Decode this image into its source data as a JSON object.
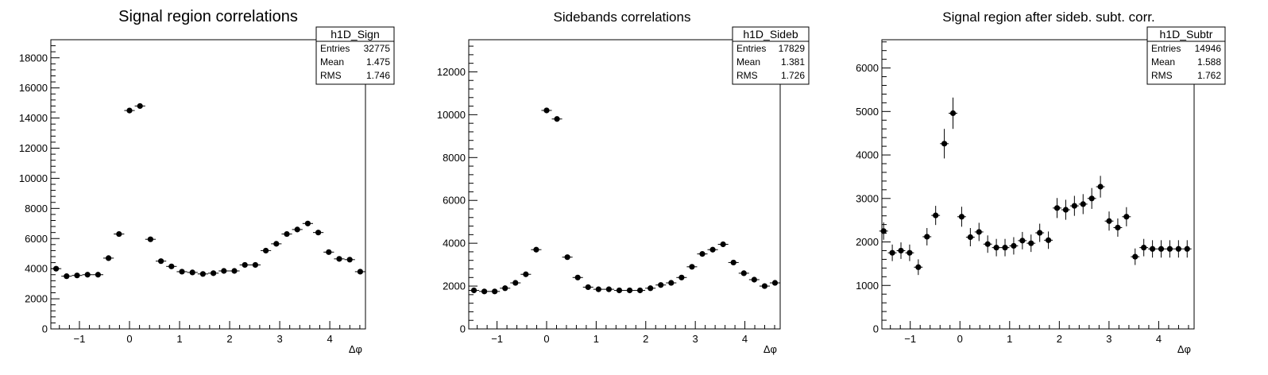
{
  "chart_data": [
    {
      "type": "scatter",
      "title": "Signal region correlations",
      "xlabel": "Δφ",
      "ylabel": "",
      "xlim": [
        -1.5708,
        4.7124
      ],
      "ylim": [
        0,
        19200
      ],
      "xticks": [
        -1,
        0,
        1,
        2,
        3,
        4
      ],
      "xtick_labels": [
        "−1",
        "0",
        "1",
        "2",
        "3",
        "4"
      ],
      "yticks": [
        0,
        2000,
        4000,
        6000,
        8000,
        10000,
        12000,
        14000,
        16000,
        18000
      ],
      "ytick_labels": [
        "0",
        "2000",
        "4000",
        "6000",
        "8000",
        "10000",
        "12000",
        "14000",
        "16000",
        "18000"
      ],
      "stats": {
        "name": "h1D_Sign",
        "rows": [
          {
            "label": "Entries",
            "value": "32775"
          },
          {
            "label": "Mean",
            "value": "1.475"
          },
          {
            "label": "RMS",
            "value": "1.746"
          }
        ]
      },
      "x": [
        -1.4661,
        -1.2566,
        -1.0472,
        -0.8378,
        -0.6283,
        -0.4189,
        -0.2094,
        0.0,
        0.2094,
        0.4189,
        0.6283,
        0.8378,
        1.0472,
        1.2566,
        1.4661,
        1.6755,
        1.885,
        2.0944,
        2.3038,
        2.5133,
        2.7227,
        2.9322,
        3.1416,
        3.351,
        3.5605,
        3.7699,
        3.9794,
        4.1888,
        4.3982,
        4.6077
      ],
      "y": [
        4000,
        3500,
        3550,
        3600,
        3600,
        4700,
        6300,
        14500,
        14800,
        5950,
        4500,
        4150,
        3800,
        3750,
        3650,
        3700,
        3850,
        3850,
        4250,
        4250,
        5200,
        5650,
        6300,
        6600,
        7000,
        6400,
        5100,
        4650,
        4600,
        3800
      ],
      "yerr": [
        63,
        59,
        60,
        60,
        60,
        69,
        79,
        120,
        122,
        77,
        67,
        64,
        62,
        61,
        60,
        61,
        62,
        62,
        65,
        65,
        72,
        75,
        79,
        81,
        84,
        80,
        71,
        68,
        68,
        62
      ]
    },
    {
      "type": "scatter",
      "title": "Sidebands correlations",
      "xlabel": "Δφ",
      "ylabel": "",
      "xlim": [
        -1.5708,
        4.7124
      ],
      "ylim": [
        0,
        13500
      ],
      "xticks": [
        -1,
        0,
        1,
        2,
        3,
        4
      ],
      "xtick_labels": [
        "−1",
        "0",
        "1",
        "2",
        "3",
        "4"
      ],
      "yticks": [
        0,
        2000,
        4000,
        6000,
        8000,
        10000,
        12000
      ],
      "ytick_labels": [
        "0",
        "2000",
        "4000",
        "6000",
        "8000",
        "10000",
        "12000"
      ],
      "stats": {
        "name": "h1D_Sideb",
        "rows": [
          {
            "label": "Entries",
            "value": "17829"
          },
          {
            "label": "Mean",
            "value": "1.381"
          },
          {
            "label": "RMS",
            "value": "1.726"
          }
        ]
      },
      "x": [
        -1.4661,
        -1.2566,
        -1.0472,
        -0.8378,
        -0.6283,
        -0.4189,
        -0.2094,
        0.0,
        0.2094,
        0.4189,
        0.6283,
        0.8378,
        1.0472,
        1.2566,
        1.4661,
        1.6755,
        1.885,
        2.0944,
        2.3038,
        2.5133,
        2.7227,
        2.9322,
        3.1416,
        3.351,
        3.5605,
        3.7699,
        3.9794,
        4.1888,
        4.3982,
        4.6077
      ],
      "y": [
        1800,
        1750,
        1750,
        1900,
        2150,
        2550,
        3700,
        10200,
        9800,
        3350,
        2400,
        1950,
        1850,
        1850,
        1800,
        1800,
        1800,
        1900,
        2050,
        2150,
        2400,
        2900,
        3500,
        3700,
        3950,
        3100,
        2600,
        2300,
        2000,
        2150
      ],
      "yerr": [
        42,
        42,
        42,
        44,
        46,
        50,
        61,
        101,
        99,
        58,
        49,
        44,
        43,
        43,
        42,
        42,
        42,
        44,
        45,
        46,
        49,
        54,
        59,
        61,
        63,
        56,
        51,
        48,
        45,
        46
      ]
    },
    {
      "type": "scatter",
      "title": "Signal region after sideb. subt. corr.",
      "xlabel": "Δφ",
      "ylabel": "",
      "xlim": [
        -1.5708,
        4.7124
      ],
      "ylim": [
        0,
        6650
      ],
      "xticks": [
        -1,
        0,
        1,
        2,
        3,
        4
      ],
      "xtick_labels": [
        "−1",
        "0",
        "1",
        "2",
        "3",
        "4"
      ],
      "yticks": [
        0,
        1000,
        2000,
        3000,
        4000,
        5000,
        6000
      ],
      "ytick_labels": [
        "0",
        "1000",
        "2000",
        "3000",
        "4000",
        "5000",
        "6000"
      ],
      "stats": {
        "name": "h1D_Subtr",
        "rows": [
          {
            "label": "Entries",
            "value": "14946"
          },
          {
            "label": "Mean",
            "value": "1.588"
          },
          {
            "label": "RMS",
            "value": "1.762"
          }
        ]
      },
      "x": [
        -1.5359,
        -1.3614,
        -1.1868,
        -1.0123,
        -0.8378,
        -0.6632,
        -0.4887,
        -0.3142,
        -0.1396,
        0.0349,
        0.2094,
        0.384,
        0.5585,
        0.733,
        0.9076,
        1.0821,
        1.2566,
        1.4312,
        1.6057,
        1.7802,
        1.9548,
        2.1293,
        2.3038,
        2.4784,
        2.6529,
        2.8274,
        3.002,
        3.1765,
        3.351,
        3.5256,
        3.7001,
        3.8746,
        4.0492,
        4.2237,
        4.3982,
        4.5728
      ],
      "y": [
        2250,
        1750,
        1800,
        1750,
        1420,
        2120,
        2610,
        4260,
        4960,
        2580,
        2110,
        2230,
        1950,
        1870,
        1870,
        1910,
        2030,
        1970,
        2210,
        2040,
        2780,
        2740,
        2830,
        2870,
        3000,
        3270,
        2480,
        2330,
        2580,
        1660,
        1870,
        1840,
        1840,
        1840,
        1840,
        1840
      ],
      "yerr": [
        200,
        190,
        190,
        190,
        180,
        200,
        220,
        340,
        360,
        230,
        210,
        210,
        200,
        200,
        200,
        200,
        200,
        200,
        210,
        200,
        230,
        230,
        230,
        230,
        240,
        250,
        220,
        210,
        220,
        190,
        200,
        200,
        200,
        200,
        200,
        200
      ]
    }
  ]
}
